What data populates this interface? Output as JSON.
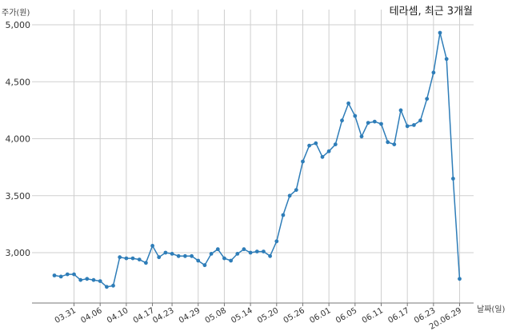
{
  "chart_data": {
    "type": "line",
    "title": "테라셈, 최근 3개월",
    "ylabel": "주가(원)",
    "xlabel": "날짜(일)",
    "ylim": [
      2600,
      5000
    ],
    "yticks": [
      3000,
      3500,
      4000,
      4500,
      5000
    ],
    "ytick_labels": [
      "3,000",
      "3,500",
      "4,000",
      "4,500",
      "5,000"
    ],
    "grid": true,
    "line_color": "#2e7db8",
    "xtick_labels": [
      "03.31",
      "04.06",
      "04.10",
      "04.17",
      "04.23",
      "04.29",
      "05.08",
      "05.14",
      "05.20",
      "05.26",
      "06.01",
      "06.05",
      "06.11",
      "06.17",
      "06.23",
      "20.06.29"
    ],
    "xtick_index": [
      3,
      7,
      11,
      15,
      18,
      22,
      26,
      30,
      34,
      38,
      42,
      46,
      50,
      54,
      58,
      62
    ],
    "values": [
      2800,
      2790,
      2810,
      2810,
      2760,
      2770,
      2760,
      2750,
      2700,
      2710,
      2960,
      2950,
      2950,
      2940,
      2910,
      3060,
      2960,
      3000,
      2990,
      2970,
      2970,
      2970,
      2930,
      2890,
      2990,
      3030,
      2950,
      2930,
      2990,
      3030,
      3000,
      3010,
      3010,
      2970,
      3100,
      3330,
      3500,
      3550,
      3800,
      3940,
      3960,
      3840,
      3890,
      3950,
      4160,
      4310,
      4200,
      4020,
      4140,
      4150,
      4130,
      3970,
      3950,
      4250,
      4110,
      4120,
      4160,
      4350,
      4580,
      4930,
      4700,
      3650,
      2770
    ]
  }
}
